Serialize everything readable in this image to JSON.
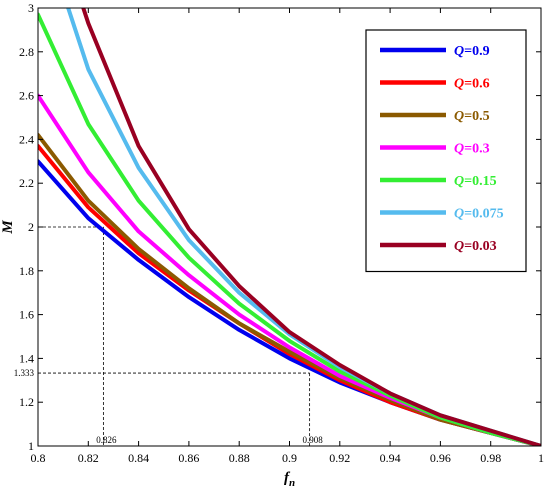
{
  "chart_data": {
    "type": "line",
    "title": "",
    "xlabel": "f",
    "xlabel_sub": "n",
    "ylabel": "M",
    "xlim": [
      0.8,
      1.0
    ],
    "ylim": [
      1.0,
      3.0
    ],
    "xticks": [
      0.8,
      0.82,
      0.84,
      0.86,
      0.88,
      0.9,
      0.92,
      0.94,
      0.96,
      0.98,
      1.0
    ],
    "xtick_labels": [
      "0.8",
      "0.82",
      "0.84",
      "0.86",
      "0.88",
      "0.9",
      "0.92",
      "0.94",
      "0.96",
      "0.98",
      "1"
    ],
    "yticks": [
      1.0,
      1.2,
      1.4,
      1.6,
      1.8,
      2.0,
      2.2,
      2.4,
      2.6,
      2.8,
      3.0
    ],
    "ytick_labels": [
      "1",
      "1.2",
      "1.4",
      "1.6",
      "1.8",
      "2",
      "2.2",
      "2.4",
      "2.6",
      "2.8",
      "3"
    ],
    "grid": false,
    "legend_position": "top-right",
    "series": [
      {
        "name": "Q=0.9",
        "color": "#0000ee",
        "x": [
          0.8,
          0.82,
          0.84,
          0.86,
          0.88,
          0.9,
          0.92,
          0.94,
          0.96,
          0.98,
          1.0
        ],
        "y": [
          2.3,
          2.04,
          1.85,
          1.68,
          1.53,
          1.4,
          1.29,
          1.2,
          1.12,
          1.06,
          1.0
        ]
      },
      {
        "name": "Q=0.6",
        "color": "#ff0000",
        "x": [
          0.8,
          0.82,
          0.84,
          0.86,
          0.88,
          0.9,
          0.92,
          0.94,
          0.96,
          0.98,
          1.0
        ],
        "y": [
          2.37,
          2.09,
          1.88,
          1.71,
          1.56,
          1.42,
          1.3,
          1.2,
          1.12,
          1.06,
          1.0
        ]
      },
      {
        "name": "Q=0.5",
        "color": "#8b5a00",
        "x": [
          0.8,
          0.82,
          0.84,
          0.86,
          0.88,
          0.9,
          0.92,
          0.94,
          0.96,
          0.98,
          1.0
        ],
        "y": [
          2.42,
          2.12,
          1.9,
          1.72,
          1.56,
          1.43,
          1.31,
          1.21,
          1.12,
          1.06,
          1.0
        ]
      },
      {
        "name": "Q=0.3",
        "color": "#ff00ff",
        "x": [
          0.8,
          0.82,
          0.84,
          0.86,
          0.88,
          0.9,
          0.92,
          0.94,
          0.96,
          0.98,
          1.0
        ],
        "y": [
          2.6,
          2.25,
          1.98,
          1.78,
          1.6,
          1.45,
          1.32,
          1.22,
          1.13,
          1.06,
          1.0
        ]
      },
      {
        "name": "Q=0.15",
        "color": "#33ee33",
        "x": [
          0.8,
          0.82,
          0.84,
          0.86,
          0.88,
          0.9,
          0.92,
          0.94,
          0.96,
          0.98,
          1.0
        ],
        "y": [
          2.97,
          2.47,
          2.12,
          1.86,
          1.65,
          1.48,
          1.34,
          1.23,
          1.13,
          1.06,
          1.0
        ]
      },
      {
        "name": "Q=0.075",
        "color": "#55bbee",
        "x": [
          0.812,
          0.82,
          0.84,
          0.86,
          0.88,
          0.9,
          0.92,
          0.94,
          0.96,
          0.98,
          1.0
        ],
        "y": [
          3.0,
          2.72,
          2.27,
          1.94,
          1.7,
          1.51,
          1.36,
          1.24,
          1.14,
          1.07,
          1.0
        ]
      },
      {
        "name": "Q=0.03",
        "color": "#990022",
        "x": [
          0.818,
          0.82,
          0.84,
          0.86,
          0.88,
          0.9,
          0.92,
          0.94,
          0.96,
          0.98,
          1.0
        ],
        "y": [
          3.0,
          2.93,
          2.37,
          1.99,
          1.73,
          1.52,
          1.37,
          1.24,
          1.14,
          1.07,
          1.0
        ]
      }
    ],
    "annotations": [
      {
        "x": 0.826,
        "y": 2.0,
        "label_x": "0.826"
      },
      {
        "x": 0.908,
        "y": 1.333,
        "label_y": "1.333",
        "label_x": "0.908"
      }
    ]
  }
}
